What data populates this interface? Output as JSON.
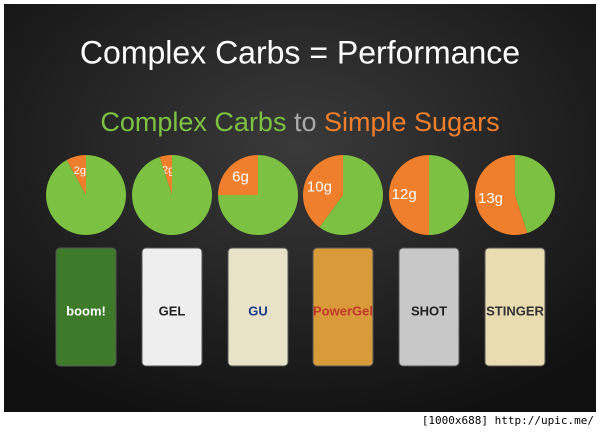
{
  "header": {
    "title": "Complex Carbs = Performance",
    "subtitle": {
      "complex": "Complex Carbs",
      "to": "to",
      "simple": "Simple Sugars"
    }
  },
  "chart_data": [
    {
      "type": "pie",
      "label": "2g",
      "values": [
        8,
        92
      ],
      "colors": [
        "#f07f2d",
        "#7dc142"
      ]
    },
    {
      "type": "pie",
      "label": "2g",
      "values": [
        5,
        95
      ],
      "colors": [
        "#f07f2d",
        "#7dc142"
      ]
    },
    {
      "type": "pie",
      "label": "6g",
      "values": [
        25,
        75
      ],
      "colors": [
        "#f07f2d",
        "#7dc142"
      ]
    },
    {
      "type": "pie",
      "label": "10g",
      "values": [
        40,
        60
      ],
      "colors": [
        "#f07f2d",
        "#7dc142"
      ]
    },
    {
      "type": "pie",
      "label": "12g",
      "values": [
        50,
        50
      ],
      "colors": [
        "#f07f2d",
        "#7dc142"
      ]
    },
    {
      "type": "pie",
      "label": "13g",
      "values": [
        55,
        45
      ],
      "colors": [
        "#f07f2d",
        "#7dc142"
      ]
    }
  ],
  "products": [
    "boom!",
    "GEL",
    "GU",
    "PowerGel",
    "SHOT",
    "STINGER"
  ],
  "footer": "[1000x688] http://upic.me/"
}
